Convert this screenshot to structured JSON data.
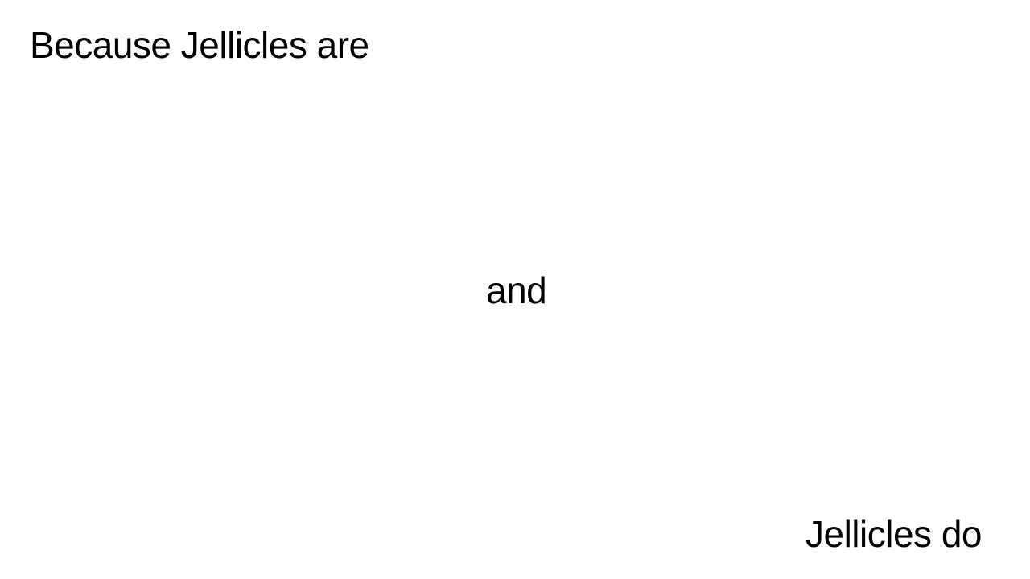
{
  "slide": {
    "top_text": "Because Jellicles are",
    "middle_text": "and",
    "bottom_text": "Jellicles do"
  },
  "colors": {
    "background": "#ffffff",
    "text": "#000000"
  }
}
